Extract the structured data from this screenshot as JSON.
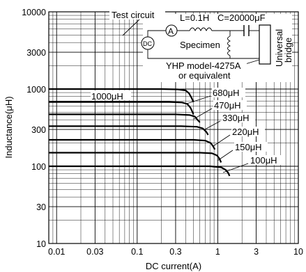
{
  "chart_data": {
    "type": "line",
    "xlabel": "DC current(A)",
    "ylabel": "Inductance(μH)",
    "x_scale": "log",
    "y_scale": "log",
    "xlim": [
      0.008,
      10
    ],
    "ylim": [
      10,
      10000
    ],
    "grid": true,
    "x_ticks": [
      {
        "value": 0.01,
        "label": "0.01"
      },
      {
        "value": 0.03,
        "label": "0.03"
      },
      {
        "value": 0.1,
        "label": "0.1"
      },
      {
        "value": 0.3,
        "label": "0.3"
      },
      {
        "value": 1,
        "label": "1"
      },
      {
        "value": 3,
        "label": "3"
      },
      {
        "value": 10,
        "label": "10"
      }
    ],
    "y_ticks": [
      {
        "value": 10,
        "label": "10"
      },
      {
        "value": 30,
        "label": "30"
      },
      {
        "value": 100,
        "label": "100"
      },
      {
        "value": 300,
        "label": "300"
      },
      {
        "value": 1000,
        "label": "1000"
      },
      {
        "value": 3000,
        "label": "3000"
      },
      {
        "value": 10000,
        "label": "10000"
      }
    ],
    "series": [
      {
        "name": "1000μH",
        "points": [
          [
            0.008,
            1000
          ],
          [
            0.2,
            1000
          ],
          [
            0.32,
            990
          ],
          [
            0.4,
            960
          ],
          [
            0.44,
            880
          ],
          [
            0.47,
            780
          ],
          [
            0.5,
            680
          ]
        ]
      },
      {
        "name": "680μH",
        "points": [
          [
            0.008,
            680
          ],
          [
            0.25,
            680
          ],
          [
            0.36,
            670
          ],
          [
            0.42,
            640
          ],
          [
            0.46,
            570
          ],
          [
            0.5,
            470
          ]
        ]
      },
      {
        "name": "470μH",
        "points": [
          [
            0.008,
            470
          ],
          [
            0.3,
            470
          ],
          [
            0.45,
            460
          ],
          [
            0.52,
            440
          ],
          [
            0.56,
            400
          ],
          [
            0.6,
            370
          ]
        ]
      },
      {
        "name": "330μH",
        "points": [
          [
            0.008,
            330
          ],
          [
            0.35,
            330
          ],
          [
            0.55,
            325
          ],
          [
            0.65,
            310
          ],
          [
            0.72,
            280
          ],
          [
            0.76,
            255
          ]
        ]
      },
      {
        "name": "220μH",
        "points": [
          [
            0.008,
            220
          ],
          [
            0.5,
            220
          ],
          [
            0.7,
            215
          ],
          [
            0.82,
            200
          ],
          [
            0.88,
            180
          ],
          [
            0.92,
            165
          ]
        ]
      },
      {
        "name": "150μH",
        "points": [
          [
            0.008,
            150
          ],
          [
            0.6,
            150
          ],
          [
            0.85,
            147
          ],
          [
            0.98,
            138
          ],
          [
            1.05,
            125
          ],
          [
            1.1,
            112
          ]
        ]
      },
      {
        "name": "100μH",
        "points": [
          [
            0.008,
            100
          ],
          [
            0.8,
            100
          ],
          [
            1.1,
            97
          ],
          [
            1.25,
            90
          ],
          [
            1.35,
            82
          ],
          [
            1.4,
            75
          ]
        ]
      }
    ]
  },
  "labels": {
    "s1000": "1000μH",
    "s680": "680μH",
    "s470": "470μH",
    "s330": "330μH",
    "s220": "220μH",
    "s150": "150μH",
    "s100": "100μH"
  },
  "circuit": {
    "title": "Test circuit",
    "inductor": "L=0.1H",
    "capacitor": "C=20000μF",
    "ammeter": "A",
    "dc_source": "DC",
    "specimen": "Specimen",
    "bridge_line1": "Universal",
    "bridge_line2": "bridge",
    "instrument_line1": "YHP model-4275A",
    "instrument_line2": "or equivalent"
  }
}
